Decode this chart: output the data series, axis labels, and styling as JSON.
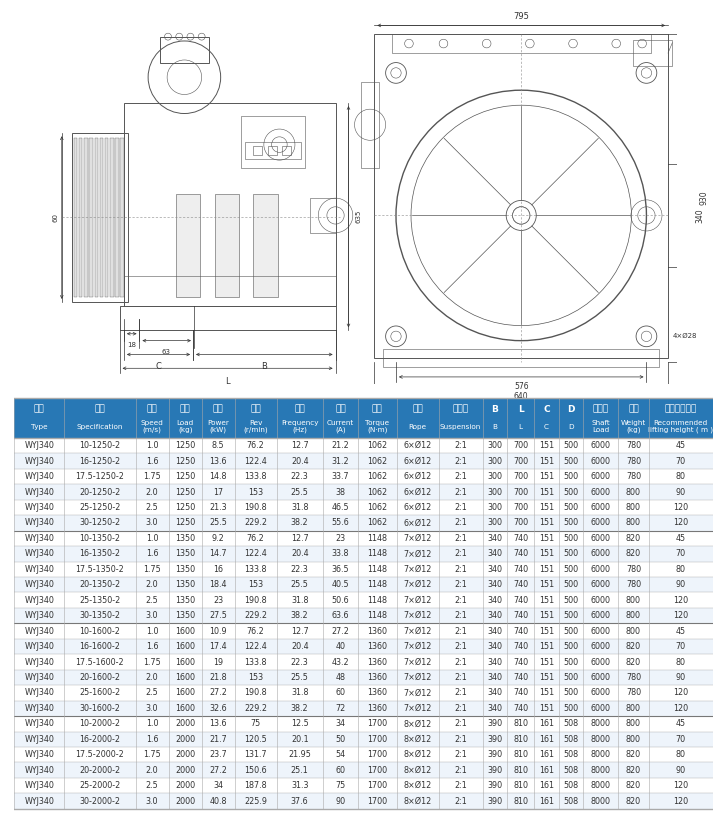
{
  "header_bg": "#2878b5",
  "header_text_color": "#ffffff",
  "row_bg_even": "#ffffff",
  "row_bg_odd": "#eef4fb",
  "border_color": "#aaaaaa",
  "group_border_color": "#777777",
  "text_color": "#333333",
  "font_size_header_cn": 6.5,
  "font_size_header_en": 5.2,
  "font_size_data": 5.8,
  "col_headers_cn": [
    "型号",
    "规格",
    "梯速",
    "载重",
    "功率",
    "转速",
    "频率",
    "电流",
    "转矩",
    "绳规",
    "曳引比",
    "B",
    "L",
    "C",
    "D",
    "轴负荷",
    "自重",
    "推荐提升高度"
  ],
  "col_headers_en": [
    "Type",
    "Specification",
    "Speed\n(m/s)",
    "Load\n(kg)",
    "Power\n(kW)",
    "Rev\n(r/min)",
    "Frequency\n(Hz)",
    "Current\n(A)",
    "Torque\n(N·m)",
    "Rope",
    "Suspension",
    "B",
    "L",
    "C",
    "D",
    "Shaft\nLoad",
    "Weight\n(kg)",
    "Recommended\nlifting height ( m )"
  ],
  "col_widths_raw": [
    4.5,
    6.5,
    3.0,
    3.0,
    3.0,
    3.8,
    4.2,
    3.2,
    3.5,
    3.8,
    4.0,
    2.2,
    2.5,
    2.2,
    2.2,
    3.2,
    2.8,
    5.8
  ],
  "rows": [
    [
      "WYJ340",
      "10-1250-2",
      "1.0",
      "1250",
      "8.5",
      "76.2",
      "12.7",
      "21.2",
      "1062",
      "6×Ø12",
      "2:1",
      "300",
      "700",
      "151",
      "500",
      "6000",
      "780",
      "45"
    ],
    [
      "WYJ340",
      "16-1250-2",
      "1.6",
      "1250",
      "13.6",
      "122.4",
      "20.4",
      "31.2",
      "1062",
      "6×Ø12",
      "2:1",
      "300",
      "700",
      "151",
      "500",
      "6000",
      "780",
      "70"
    ],
    [
      "WYJ340",
      "17.5-1250-2",
      "1.75",
      "1250",
      "14.8",
      "133.8",
      "22.3",
      "33.7",
      "1062",
      "6×Ø12",
      "2:1",
      "300",
      "700",
      "151",
      "500",
      "6000",
      "780",
      "80"
    ],
    [
      "WYJ340",
      "20-1250-2",
      "2.0",
      "1250",
      "17",
      "153",
      "25.5",
      "38",
      "1062",
      "6×Ø12",
      "2:1",
      "300",
      "700",
      "151",
      "500",
      "6000",
      "800",
      "90"
    ],
    [
      "WYJ340",
      "25-1250-2",
      "2.5",
      "1250",
      "21.3",
      "190.8",
      "31.8",
      "46.5",
      "1062",
      "6×Ø12",
      "2:1",
      "300",
      "700",
      "151",
      "500",
      "6000",
      "800",
      "120"
    ],
    [
      "WYJ340",
      "30-1250-2",
      "3.0",
      "1250",
      "25.5",
      "229.2",
      "38.2",
      "55.6",
      "1062",
      "6×Ø12",
      "2:1",
      "300",
      "700",
      "151",
      "500",
      "6000",
      "800",
      "120"
    ],
    [
      "WYJ340",
      "10-1350-2",
      "1.0",
      "1350",
      "9.2",
      "76.2",
      "12.7",
      "23",
      "1148",
      "7×Ø12",
      "2:1",
      "340",
      "740",
      "151",
      "500",
      "6000",
      "820",
      "45"
    ],
    [
      "WYJ340",
      "16-1350-2",
      "1.6",
      "1350",
      "14.7",
      "122.4",
      "20.4",
      "33.8",
      "1148",
      "7×Ø12",
      "2:1",
      "340",
      "740",
      "151",
      "500",
      "6000",
      "820",
      "70"
    ],
    [
      "WYJ340",
      "17.5-1350-2",
      "1.75",
      "1350",
      "16",
      "133.8",
      "22.3",
      "36.5",
      "1148",
      "7×Ø12",
      "2:1",
      "340",
      "740",
      "151",
      "500",
      "6000",
      "780",
      "80"
    ],
    [
      "WYJ340",
      "20-1350-2",
      "2.0",
      "1350",
      "18.4",
      "153",
      "25.5",
      "40.5",
      "1148",
      "7×Ø12",
      "2:1",
      "340",
      "740",
      "151",
      "500",
      "6000",
      "780",
      "90"
    ],
    [
      "WYJ340",
      "25-1350-2",
      "2.5",
      "1350",
      "23",
      "190.8",
      "31.8",
      "50.6",
      "1148",
      "7×Ø12",
      "2:1",
      "340",
      "740",
      "151",
      "500",
      "6000",
      "800",
      "120"
    ],
    [
      "WYJ340",
      "30-1350-2",
      "3.0",
      "1350",
      "27.5",
      "229.2",
      "38.2",
      "63.6",
      "1148",
      "7×Ø12",
      "2:1",
      "340",
      "740",
      "151",
      "500",
      "6000",
      "800",
      "120"
    ],
    [
      "WYJ340",
      "10-1600-2",
      "1.0",
      "1600",
      "10.9",
      "76.2",
      "12.7",
      "27.2",
      "1360",
      "7×Ø12",
      "2:1",
      "340",
      "740",
      "151",
      "500",
      "6000",
      "800",
      "45"
    ],
    [
      "WYJ340",
      "16-1600-2",
      "1.6",
      "1600",
      "17.4",
      "122.4",
      "20.4",
      "40",
      "1360",
      "7×Ø12",
      "2:1",
      "340",
      "740",
      "151",
      "500",
      "6000",
      "820",
      "70"
    ],
    [
      "WYJ340",
      "17.5-1600-2",
      "1.75",
      "1600",
      "19",
      "133.8",
      "22.3",
      "43.2",
      "1360",
      "7×Ø12",
      "2:1",
      "340",
      "740",
      "151",
      "500",
      "6000",
      "820",
      "80"
    ],
    [
      "WYJ340",
      "20-1600-2",
      "2.0",
      "1600",
      "21.8",
      "153",
      "25.5",
      "48",
      "1360",
      "7×Ø12",
      "2:1",
      "340",
      "740",
      "151",
      "500",
      "6000",
      "780",
      "90"
    ],
    [
      "WYJ340",
      "25-1600-2",
      "2.5",
      "1600",
      "27.2",
      "190.8",
      "31.8",
      "60",
      "1360",
      "7×Ø12",
      "2:1",
      "340",
      "740",
      "151",
      "500",
      "6000",
      "780",
      "120"
    ],
    [
      "WYJ340",
      "30-1600-2",
      "3.0",
      "1600",
      "32.6",
      "229.2",
      "38.2",
      "72",
      "1360",
      "7×Ø12",
      "2:1",
      "340",
      "740",
      "151",
      "500",
      "6000",
      "800",
      "120"
    ],
    [
      "WYJ340",
      "10-2000-2",
      "1.0",
      "2000",
      "13.6",
      "75",
      "12.5",
      "34",
      "1700",
      "8×Ø12",
      "2:1",
      "390",
      "810",
      "161",
      "508",
      "8000",
      "800",
      "45"
    ],
    [
      "WYJ340",
      "16-2000-2",
      "1.6",
      "2000",
      "21.7",
      "120.5",
      "20.1",
      "50",
      "1700",
      "8×Ø12",
      "2:1",
      "390",
      "810",
      "161",
      "508",
      "8000",
      "800",
      "70"
    ],
    [
      "WYJ340",
      "17.5-2000-2",
      "1.75",
      "2000",
      "23.7",
      "131.7",
      "21.95",
      "54",
      "1700",
      "8×Ø12",
      "2:1",
      "390",
      "810",
      "161",
      "508",
      "8000",
      "820",
      "80"
    ],
    [
      "WYJ340",
      "20-2000-2",
      "2.0",
      "2000",
      "27.2",
      "150.6",
      "25.1",
      "60",
      "1700",
      "8×Ø12",
      "2:1",
      "390",
      "810",
      "161",
      "508",
      "8000",
      "820",
      "90"
    ],
    [
      "WYJ340",
      "25-2000-2",
      "2.5",
      "2000",
      "34",
      "187.8",
      "31.3",
      "75",
      "1700",
      "8×Ø12",
      "2:1",
      "390",
      "810",
      "161",
      "508",
      "8000",
      "820",
      "120"
    ],
    [
      "WYJ340",
      "30-2000-2",
      "3.0",
      "2000",
      "40.8",
      "225.9",
      "37.6",
      "90",
      "1700",
      "8×Ø12",
      "2:1",
      "390",
      "810",
      "161",
      "508",
      "8000",
      "820",
      "120"
    ]
  ],
  "group_separators": [
    6,
    12,
    18
  ],
  "diagram_gray": "#555555",
  "dim_color": "#333333"
}
